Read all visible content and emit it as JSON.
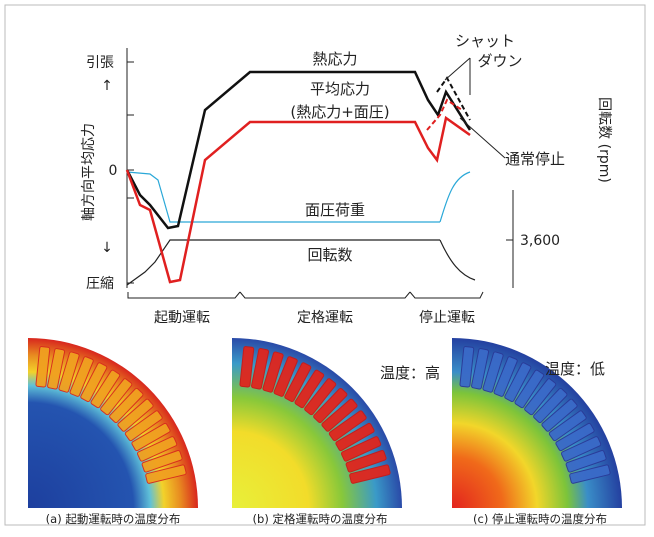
{
  "stress_chart": {
    "y_axis_label": "軸方向平均応力",
    "y_top": "引張",
    "y_top_arrow": "↑",
    "y_zero": "0",
    "y_bottom_arrow": "↓",
    "y_bottom": "圧縮",
    "y2_axis_label": "回転数 (rpm)",
    "y2_tick": "3,600",
    "curve_labels": {
      "thermal": "熱応力",
      "average": "平均応力",
      "average_note": "(熱応力+面圧)",
      "pressure": "面圧荷重",
      "speed": "回転数",
      "shutdown_1": "シャット",
      "shutdown_2": "ダウン",
      "normal_stop": "通常停止"
    },
    "phases": [
      "起動運転",
      "定格運転",
      "停止運転"
    ]
  },
  "temperature_labels": {
    "high": "温度：高",
    "low": "温度：低"
  },
  "panels": [
    {
      "caption": "(a) 起動運転時の温度分布"
    },
    {
      "caption": "(b) 定格運転時の温度分布"
    },
    {
      "caption": "(c) 停止運転時の温度分布"
    }
  ]
}
